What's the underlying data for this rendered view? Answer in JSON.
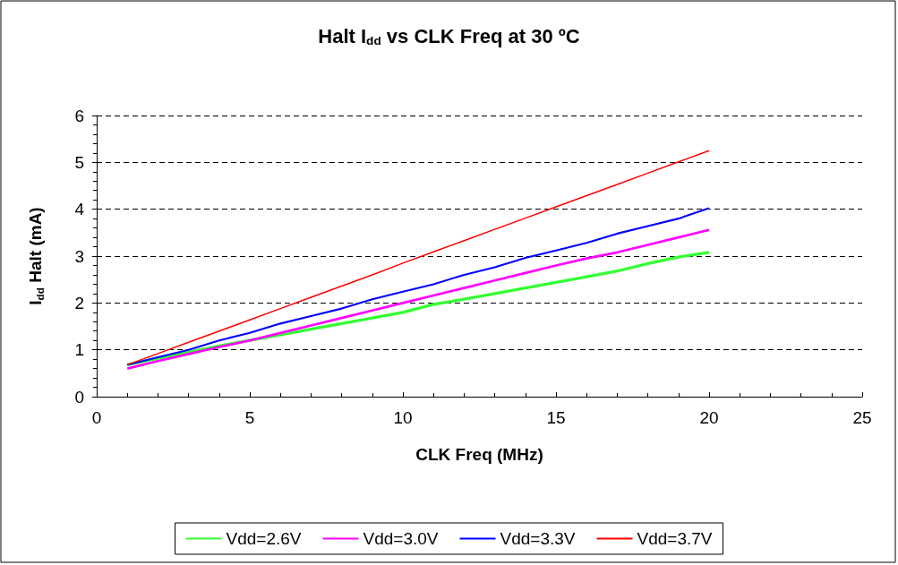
{
  "chart_data": {
    "type": "line",
    "title": "Halt I$_{dd}$ vs CLK Freq at 30 ºC",
    "xlabel": "CLK Freq (MHz)",
    "ylabel": "I$_{dd}$ Halt (mA)",
    "x": [
      1,
      2,
      3,
      4,
      5,
      6,
      7,
      8,
      9,
      10,
      11,
      12,
      13,
      14,
      15,
      16,
      17,
      18,
      19,
      20
    ],
    "series": [
      {
        "name": "Vdd=2.6V",
        "color": "#33ff33",
        "values": [
          0.68,
          0.82,
          0.95,
          1.08,
          1.2,
          1.32,
          1.44,
          1.56,
          1.68,
          1.8,
          1.97,
          2.08,
          2.2,
          2.32,
          2.44,
          2.56,
          2.68,
          2.84,
          2.98,
          3.08
        ]
      },
      {
        "name": "Vdd=3.0V",
        "color": "#ff00ff",
        "values": [
          0.6,
          0.76,
          0.91,
          1.06,
          1.2,
          1.36,
          1.52,
          1.68,
          1.84,
          2.0,
          2.16,
          2.32,
          2.48,
          2.64,
          2.8,
          2.95,
          3.08,
          3.24,
          3.4,
          3.56
        ]
      },
      {
        "name": "Vdd=3.3V",
        "color": "#0000ff",
        "values": [
          0.68,
          0.84,
          1.0,
          1.2,
          1.36,
          1.56,
          1.72,
          1.88,
          2.08,
          2.24,
          2.4,
          2.6,
          2.76,
          2.96,
          3.12,
          3.28,
          3.48,
          3.64,
          3.8,
          4.02
        ]
      },
      {
        "name": "Vdd=3.7V",
        "color": "#ff0000",
        "values": [
          0.68,
          0.92,
          1.16,
          1.4,
          1.64,
          1.88,
          2.12,
          2.36,
          2.6,
          2.85,
          3.09,
          3.33,
          3.57,
          3.81,
          4.05,
          4.29,
          4.53,
          4.77,
          5.01,
          5.25
        ]
      }
    ],
    "xlim": [
      0,
      25
    ],
    "xticks": [
      0,
      5,
      10,
      15,
      20,
      25
    ],
    "ylim": [
      0,
      6
    ],
    "yticks": [
      0,
      1,
      2,
      3,
      4,
      5,
      6
    ],
    "grid": "y",
    "legend": "bottom",
    "marker": "none",
    "line_style": "solid"
  }
}
